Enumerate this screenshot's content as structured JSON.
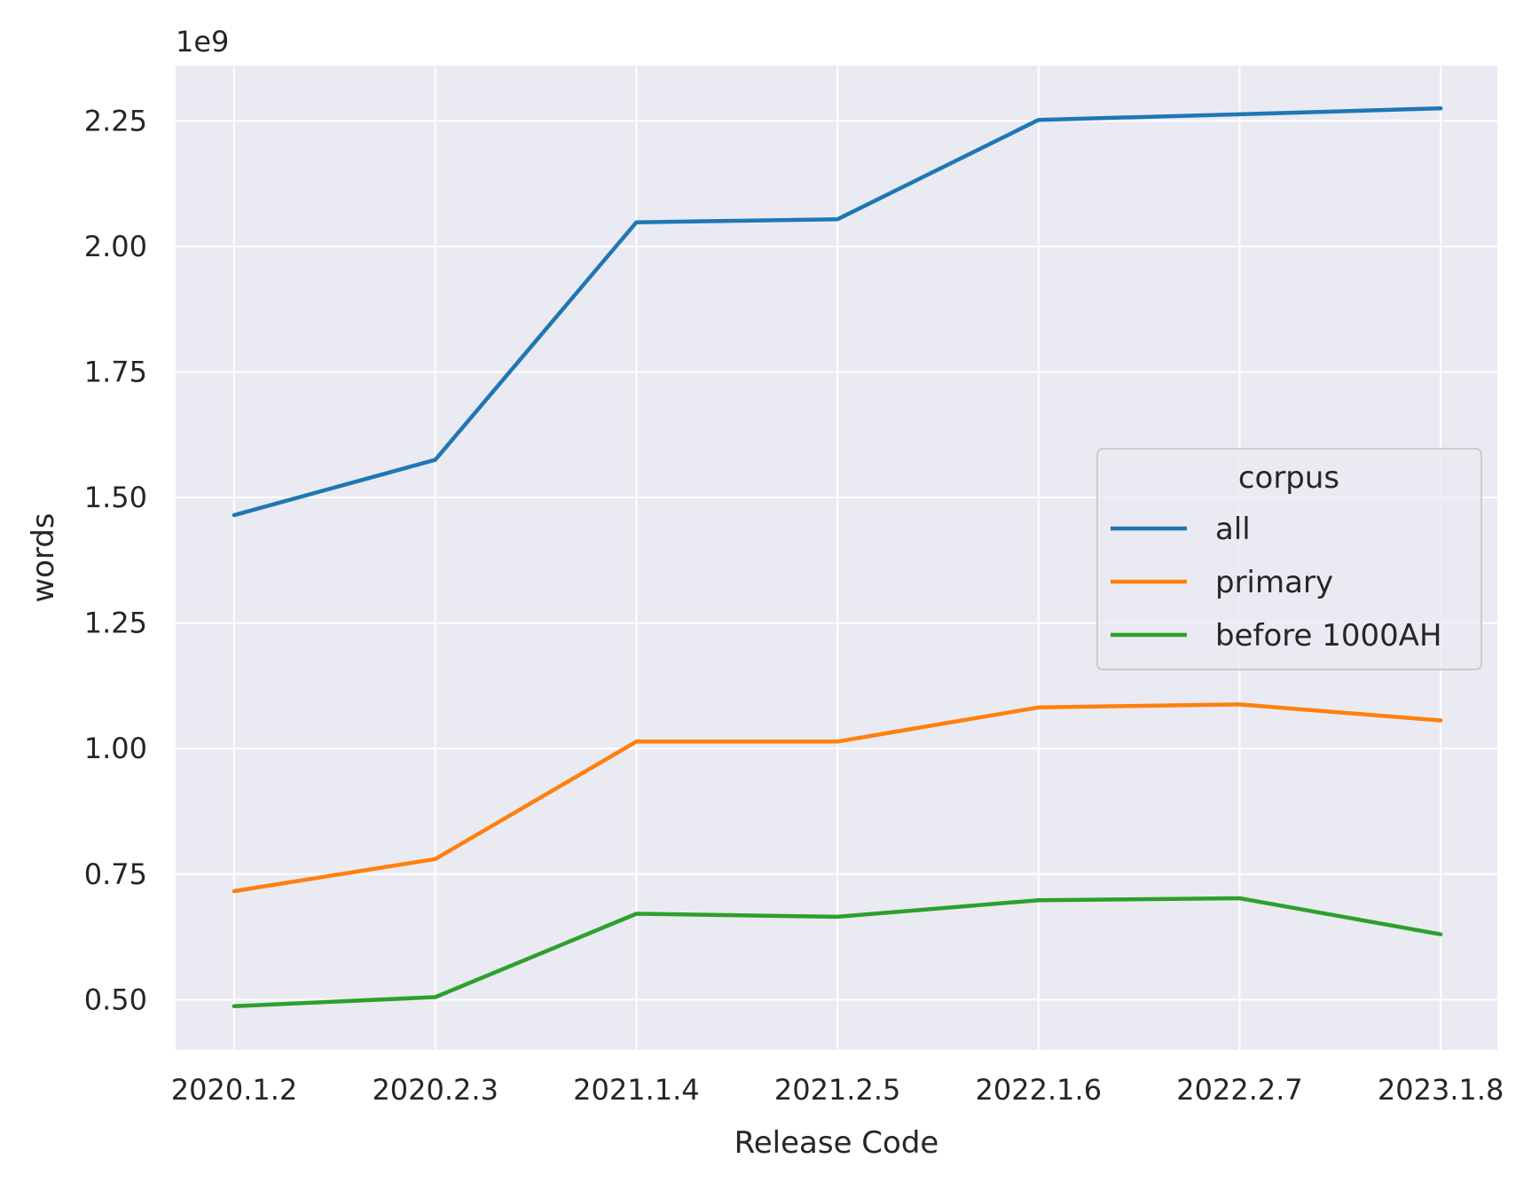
{
  "chart_data": {
    "type": "line",
    "title": "",
    "xlabel": "Release Code",
    "ylabel": "words",
    "offset_label": "1e9",
    "categories": [
      "2020.1.2",
      "2020.2.3",
      "2021.1.4",
      "2021.2.5",
      "2022.1.6",
      "2022.2.7",
      "2023.1.8"
    ],
    "y_ticks": [
      "0.50",
      "0.75",
      "1.00",
      "1.25",
      "1.50",
      "1.75",
      "2.00",
      "2.25"
    ],
    "y_tick_values": [
      0.5,
      0.75,
      1.0,
      1.25,
      1.5,
      1.75,
      2.0,
      2.25
    ],
    "ylim": [
      0.4,
      2.36
    ],
    "grid": true,
    "legend": {
      "title": "corpus",
      "placement": "center-right"
    },
    "series": [
      {
        "name": "all",
        "color": "#1f77b4",
        "values": [
          1.465,
          1.575,
          2.048,
          2.054,
          2.252,
          2.263,
          2.275
        ]
      },
      {
        "name": "primary",
        "color": "#ff7f0e",
        "values": [
          0.716,
          0.78,
          1.014,
          1.014,
          1.082,
          1.088,
          1.056
        ]
      },
      {
        "name": "before 1000AH",
        "color": "#2ca02c",
        "values": [
          0.487,
          0.505,
          0.671,
          0.665,
          0.698,
          0.702,
          0.63
        ]
      }
    ]
  }
}
